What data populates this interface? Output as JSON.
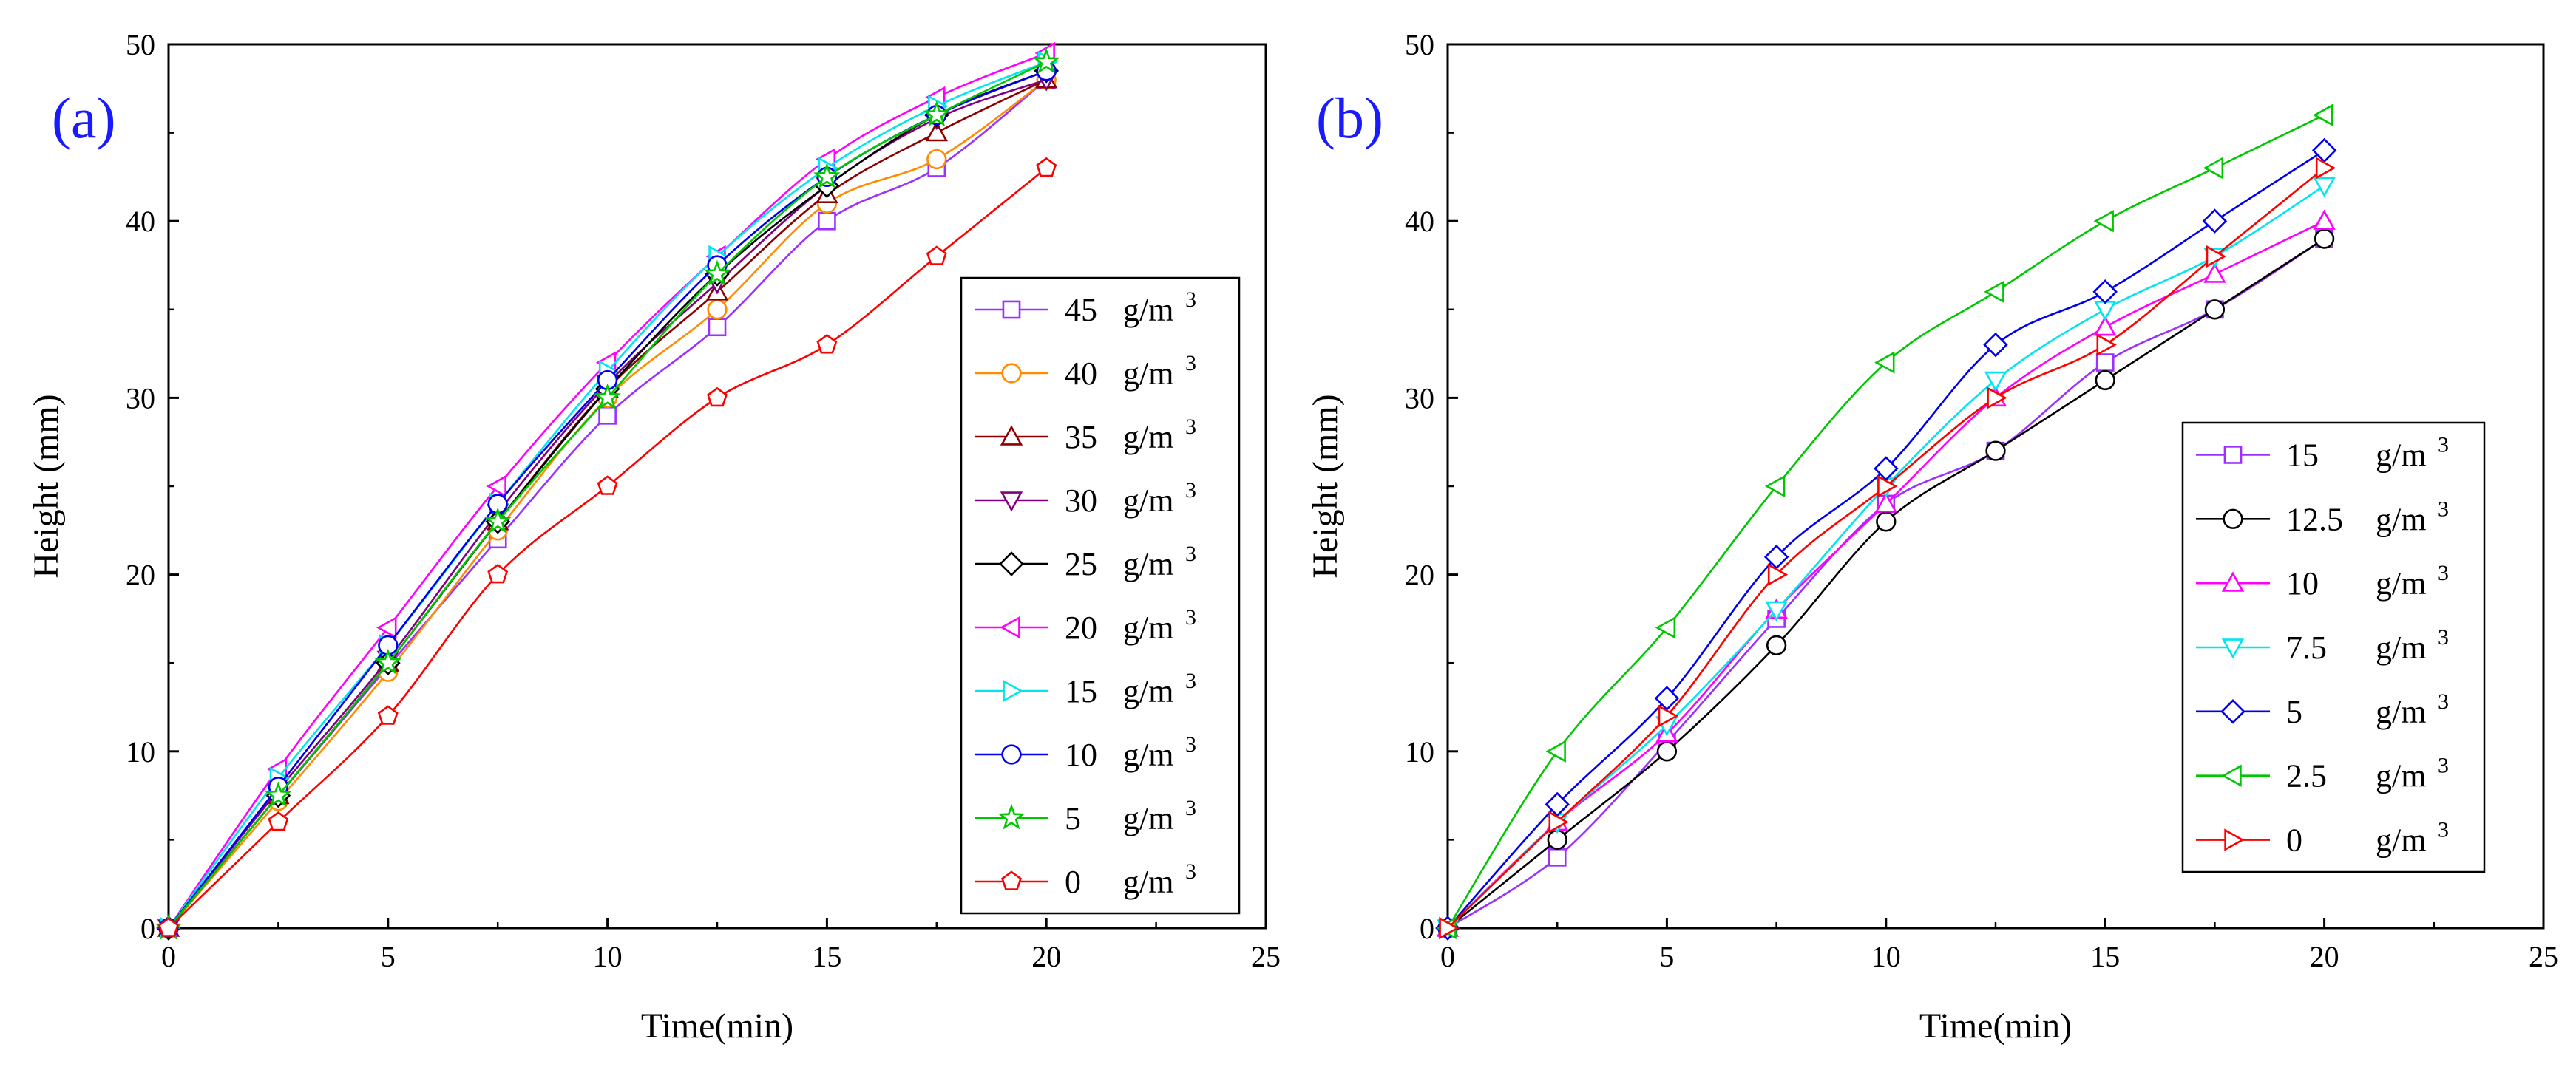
{
  "chart_data": [
    {
      "type": "line",
      "panel_label": "(a)",
      "xlabel": "Time(min)",
      "ylabel": "Height (mm)",
      "xlim": [
        0,
        25
      ],
      "ylim": [
        0,
        50
      ],
      "xticks": [
        0,
        5,
        10,
        15,
        20,
        25
      ],
      "yticks": [
        0,
        10,
        20,
        30,
        40,
        50
      ],
      "x": [
        0,
        2.5,
        5,
        7.5,
        10,
        12.5,
        15,
        17.5,
        20
      ],
      "unit": "g/m",
      "unit_sup": "3",
      "legend_position": "right",
      "series": [
        {
          "name": "45",
          "color": "#9b30ff",
          "marker": "square",
          "values": [
            0,
            7.5,
            14.8,
            22,
            29,
            34,
            40,
            43,
            48
          ]
        },
        {
          "name": "40",
          "color": "#ff8c00",
          "marker": "circle",
          "values": [
            0,
            7.2,
            14.5,
            22.5,
            30,
            35,
            41,
            43.5,
            48
          ]
        },
        {
          "name": "35",
          "color": "#8b0000",
          "marker": "triangle-up",
          "values": [
            0,
            7.5,
            15,
            23,
            30.5,
            36,
            41.5,
            45,
            48
          ]
        },
        {
          "name": "30",
          "color": "#800080",
          "marker": "triangle-down",
          "values": [
            0,
            7.8,
            15.2,
            23.5,
            30.8,
            36.5,
            42,
            45.8,
            48
          ]
        },
        {
          "name": "25",
          "color": "#000000",
          "marker": "diamond",
          "values": [
            0,
            7.5,
            15,
            23,
            30.5,
            37,
            42,
            46,
            48.5
          ]
        },
        {
          "name": "20",
          "color": "#ff00ff",
          "marker": "triangle-left",
          "values": [
            0,
            9,
            17,
            25,
            32,
            38,
            43.5,
            47,
            49.5
          ]
        },
        {
          "name": "15",
          "color": "#00e5ee",
          "marker": "triangle-right",
          "values": [
            0,
            8.5,
            16,
            24,
            31.5,
            38,
            43,
            46.5,
            49
          ]
        },
        {
          "name": "10",
          "color": "#0000ee",
          "marker": "circle",
          "values": [
            0,
            8,
            16,
            24,
            31,
            37.5,
            42.5,
            46,
            48.5
          ]
        },
        {
          "name": "5",
          "color": "#00c800",
          "marker": "star",
          "values": [
            0,
            7.5,
            15,
            23,
            30,
            37,
            42.5,
            46,
            49
          ]
        },
        {
          "name": "0",
          "color": "#ff0000",
          "marker": "pentagon",
          "values": [
            0,
            6,
            12,
            20,
            25,
            30,
            33,
            38,
            43
          ]
        }
      ]
    },
    {
      "type": "line",
      "panel_label": "(b)",
      "xlabel": "Time(min)",
      "ylabel": "Height (mm)",
      "xlim": [
        0,
        25
      ],
      "ylim": [
        0,
        50
      ],
      "xticks": [
        0,
        5,
        10,
        15,
        20,
        25
      ],
      "yticks": [
        0,
        10,
        20,
        30,
        40,
        50
      ],
      "x": [
        0,
        2.5,
        5,
        7.5,
        10,
        12.5,
        15,
        17.5,
        20
      ],
      "unit": "g/m",
      "unit_sup": "3",
      "legend_position": "bottom-right",
      "series": [
        {
          "name": "15",
          "color": "#9b30ff",
          "marker": "square",
          "values": [
            0,
            4,
            10.5,
            17.5,
            24,
            27,
            32,
            35,
            39
          ]
        },
        {
          "name": "12.5",
          "color": "#000000",
          "marker": "circle",
          "values": [
            0,
            5,
            10,
            16,
            23,
            27,
            31,
            35,
            39
          ]
        },
        {
          "name": "10",
          "color": "#ff00ff",
          "marker": "triangle-up",
          "values": [
            0,
            6,
            11,
            18,
            24,
            30,
            34,
            37,
            40
          ]
        },
        {
          "name": "7.5",
          "color": "#00e5ee",
          "marker": "triangle-down",
          "values": [
            0,
            6,
            11.5,
            18,
            25,
            31,
            35,
            38,
            42
          ]
        },
        {
          "name": "5",
          "color": "#0000ee",
          "marker": "diamond",
          "values": [
            0,
            7,
            13,
            21,
            26,
            33,
            36,
            40,
            44
          ]
        },
        {
          "name": "2.5",
          "color": "#00c800",
          "marker": "triangle-left",
          "values": [
            0,
            10,
            17,
            25,
            32,
            36,
            40,
            43,
            46
          ]
        },
        {
          "name": "0",
          "color": "#ff0000",
          "marker": "triangle-right",
          "values": [
            0,
            6,
            12,
            20,
            25,
            30,
            33,
            38,
            43
          ]
        }
      ]
    }
  ]
}
